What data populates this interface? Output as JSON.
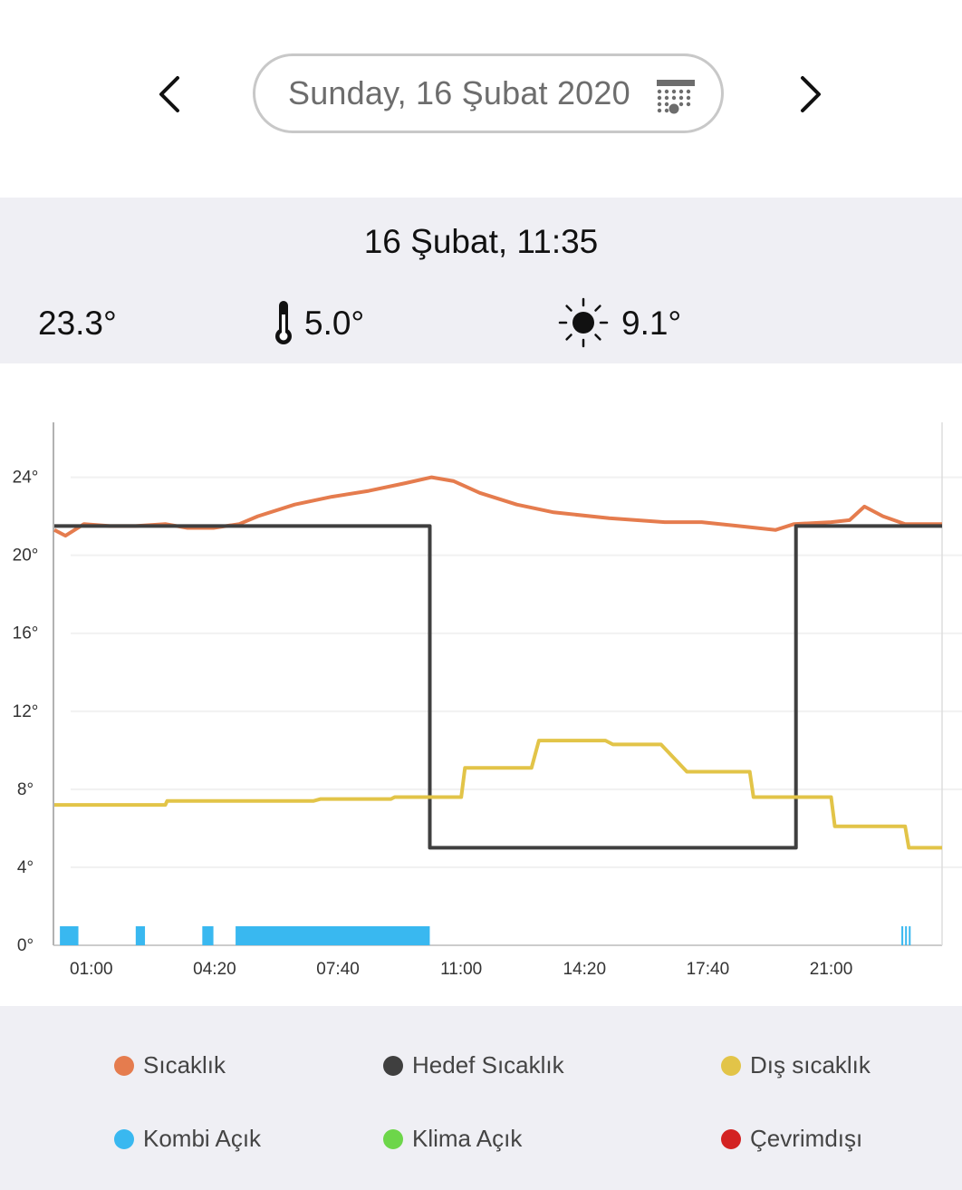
{
  "header": {
    "date_label": "Sunday, 16 Şubat 2020",
    "prev_icon": "chevron-left-icon",
    "next_icon": "chevron-right-icon",
    "calendar_icon": "calendar-icon"
  },
  "info": {
    "datetime": "16 Şubat, 11:35",
    "temperature": "23.3°",
    "target_temperature": "5.0°",
    "outdoor_temperature": "9.1°"
  },
  "colors": {
    "temperature": "#e57c4e",
    "target": "#3f3f3f",
    "outdoor": "#e2c448",
    "boiler": "#39b8f0",
    "ac": "#6dd64a",
    "offline": "#d32222"
  },
  "chart_data": {
    "type": "line",
    "ylim": [
      0,
      24
    ],
    "y_ticks": [
      "0°",
      "4°",
      "8°",
      "12°",
      "16°",
      "20°",
      "24°"
    ],
    "x_ticks": [
      "01:00",
      "04:20",
      "07:40",
      "11:00",
      "14:20",
      "17:40",
      "21:00"
    ],
    "x_unit": "hour of day",
    "xlim": [
      0,
      24
    ],
    "grid": "horizontal",
    "legend_position": "bottom",
    "series": [
      {
        "name": "Sıcaklık",
        "color": "#e57c4e",
        "x": [
          0,
          0.3,
          0.8,
          1.5,
          2.2,
          3.0,
          3.6,
          4.3,
          5.0,
          5.5,
          6.5,
          7.5,
          8.5,
          9.5,
          10.2,
          10.8,
          11.5,
          12.5,
          13.5,
          15.0,
          16.5,
          17.5,
          18.5,
          19.5,
          20.0,
          21.0,
          21.5,
          21.9,
          22.4,
          23.0,
          23.5,
          24.0
        ],
        "y": [
          21.3,
          21.0,
          21.6,
          21.5,
          21.5,
          21.6,
          21.4,
          21.4,
          21.6,
          22.0,
          22.6,
          23.0,
          23.3,
          23.7,
          24.0,
          23.8,
          23.2,
          22.6,
          22.2,
          21.9,
          21.7,
          21.7,
          21.5,
          21.3,
          21.6,
          21.7,
          21.8,
          22.5,
          22.0,
          21.6,
          21.6,
          21.6
        ]
      },
      {
        "name": "Hedef Sıcaklık",
        "color": "#3f3f3f",
        "x": [
          0,
          10.15,
          10.15,
          20.05,
          20.05,
          24
        ],
        "y": [
          21.5,
          21.5,
          5.0,
          5.0,
          21.5,
          21.5
        ]
      },
      {
        "name": "Dış sıcaklık",
        "color": "#e2c448",
        "x": [
          0,
          3.0,
          3.05,
          7.0,
          7.2,
          9.1,
          9.2,
          11.0,
          11.1,
          12.9,
          13.1,
          14.9,
          15.1,
          16.4,
          17.1,
          18.8,
          18.9,
          21.0,
          21.1,
          23.0,
          23.1,
          24.0
        ],
        "y": [
          7.2,
          7.2,
          7.4,
          7.4,
          7.5,
          7.5,
          7.6,
          7.6,
          9.1,
          9.1,
          10.5,
          10.5,
          10.3,
          10.3,
          8.9,
          8.9,
          7.6,
          7.6,
          6.1,
          6.1,
          5.0,
          5.0
        ]
      }
    ],
    "events": [
      {
        "name": "Kombi Açık",
        "color": "#39b8f0",
        "intervals": [
          [
            0.15,
            0.65
          ],
          [
            2.2,
            2.45
          ],
          [
            4.0,
            4.3
          ],
          [
            4.9,
            10.15
          ],
          [
            22.9,
            22.95
          ],
          [
            23.0,
            23.05
          ],
          [
            23.1,
            23.15
          ]
        ]
      }
    ]
  },
  "legend": [
    {
      "label": "Sıcaklık",
      "color": "#e57c4e"
    },
    {
      "label": "Hedef Sıcaklık",
      "color": "#3f3f3f"
    },
    {
      "label": "Dış sıcaklık",
      "color": "#e2c448"
    },
    {
      "label": "Kombi Açık",
      "color": "#39b8f0"
    },
    {
      "label": "Klima Açık",
      "color": "#6dd64a"
    },
    {
      "label": "Çevrimdışı",
      "color": "#d32222"
    }
  ]
}
